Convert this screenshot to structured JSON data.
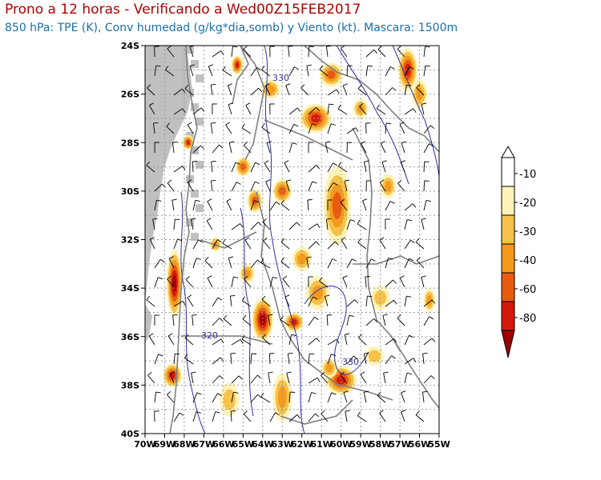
{
  "header": {
    "title": "Prono a 12 horas - Verificando a Wed00Z15FEB2017",
    "subtitle": "850 hPa: TPE (K), Conv humedad (g/kg*dia,somb) y Viento (kt). Mascara: 1500m"
  },
  "map": {
    "lat_ticks": [
      "24S",
      "26S",
      "28S",
      "30S",
      "32S",
      "34S",
      "36S",
      "38S",
      "40S"
    ],
    "lon_ticks": [
      "70W",
      "69W",
      "68W",
      "67W",
      "66W",
      "65W",
      "64W",
      "63W",
      "62W",
      "61W",
      "60W",
      "59W",
      "58W",
      "57W",
      "56W",
      "55W"
    ],
    "contour_labels": [
      "330",
      "320",
      "330"
    ],
    "colors": {
      "mask_gray": "#c0c0c0",
      "contour_blue": "#3030a0",
      "border_gray": "#7f7f7f",
      "grid_gray": "#999999"
    }
  },
  "colorbar": {
    "labels": [
      "-10",
      "-20",
      "-30",
      "-40",
      "-60",
      "-80"
    ],
    "colors": [
      "#ffffff",
      "#fff3b8",
      "#f7c24a",
      "#f59a1a",
      "#e85a0f",
      "#d41a0a",
      "#9a0000"
    ]
  },
  "chart_data": {
    "type": "heatmap",
    "xlim": [
      -70,
      -55
    ],
    "ylim": [
      -40,
      -24
    ],
    "field": "Convergencia de humedad (g/kg*dia)",
    "levels": [
      -10,
      -20,
      -30,
      -40,
      -60,
      -80
    ],
    "epv_contours_K": [
      320,
      330,
      330
    ]
  }
}
